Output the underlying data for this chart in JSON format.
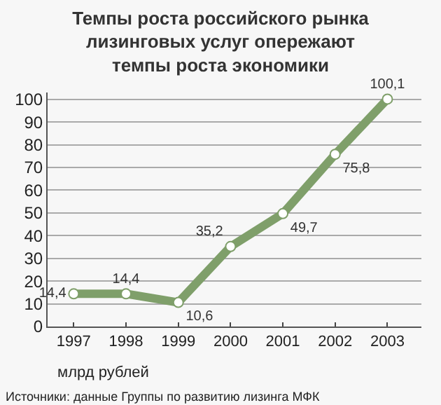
{
  "chart_data": {
    "type": "line",
    "title": "Темпы роста российского рынка\nлизинговых услуг опережают\nтемпы роста экономики",
    "categories": [
      "1997",
      "1998",
      "1999",
      "2000",
      "2001",
      "2002",
      "2003"
    ],
    "series": [
      {
        "color": "#7f9f6a",
        "values": [
          14.4,
          14.4,
          10.6,
          35.2,
          49.7,
          75.8,
          100.1
        ],
        "value_labels": [
          "14,4",
          "14,4",
          "10,6",
          "35,2",
          "49,7",
          "75,8",
          "100,1"
        ]
      }
    ],
    "ylim": [
      0,
      103
    ],
    "yticks": [
      0,
      10,
      20,
      30,
      40,
      50,
      60,
      70,
      80,
      90,
      100
    ],
    "grid": "y",
    "marker": "circle",
    "line_style": "solid",
    "legend": false,
    "annotations": [
      "млрд рублей",
      "Источники: данные Группы по развитию лизинга МФК"
    ]
  }
}
